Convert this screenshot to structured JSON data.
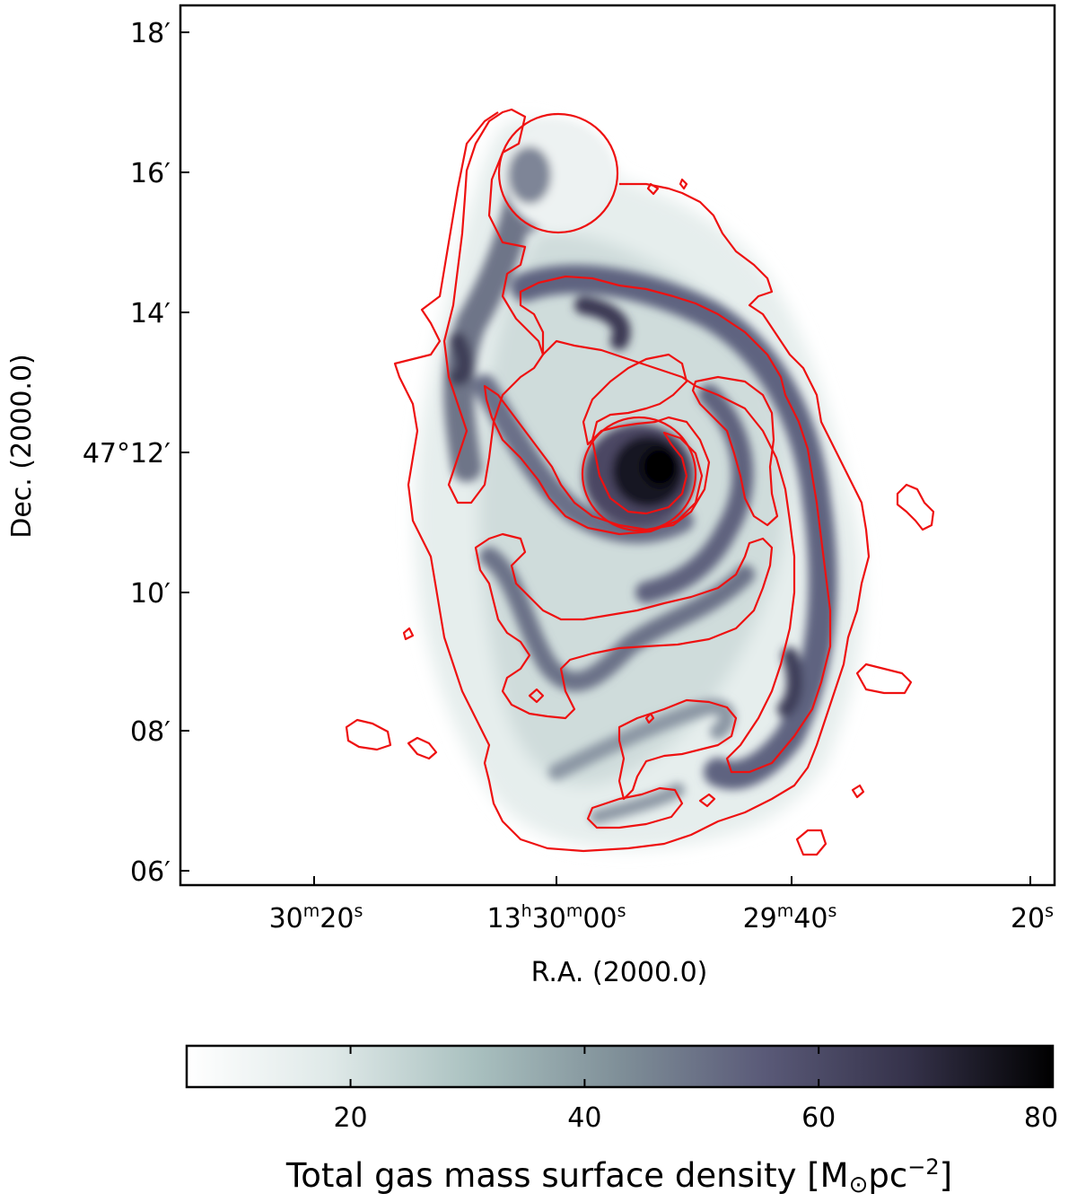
{
  "figure": {
    "ra_axis": {
      "label": "R.A. (2000.0)",
      "ticks": [
        {
          "main": "30",
          "sup1": "m",
          "mid": "20",
          "sup2": "s",
          "hours": ""
        },
        {
          "main": "13",
          "sup1": "h",
          "mid": "30",
          "sup2": "m",
          "tail": "00",
          "sup3": "s"
        },
        {
          "main": "29",
          "sup1": "m",
          "mid": "40",
          "sup2": "s"
        },
        {
          "main": "20",
          "sup1": "s"
        }
      ]
    },
    "dec_axis": {
      "label": "Dec. (2000.0)",
      "ticks": [
        "18′",
        "16′",
        "14′",
        "47°12′",
        "10′",
        "08′",
        "06′"
      ]
    },
    "colorbar": {
      "ticks": [
        "20",
        "40",
        "60",
        "80"
      ],
      "title": "Total gas mass surface density [M",
      "title_sun": "⊙",
      "title_unit": "pc",
      "title_exp": "−2",
      "title_close": "]",
      "vmin": 6,
      "vmax": 80,
      "tick_values": [
        20,
        40,
        60,
        80
      ],
      "colors": [
        "#ffffff",
        "#dfe9e8",
        "#a9c0bf",
        "#7f8f98",
        "#5a5a78",
        "#35324a",
        "#000000"
      ]
    },
    "contour_color": "#ee1111"
  }
}
